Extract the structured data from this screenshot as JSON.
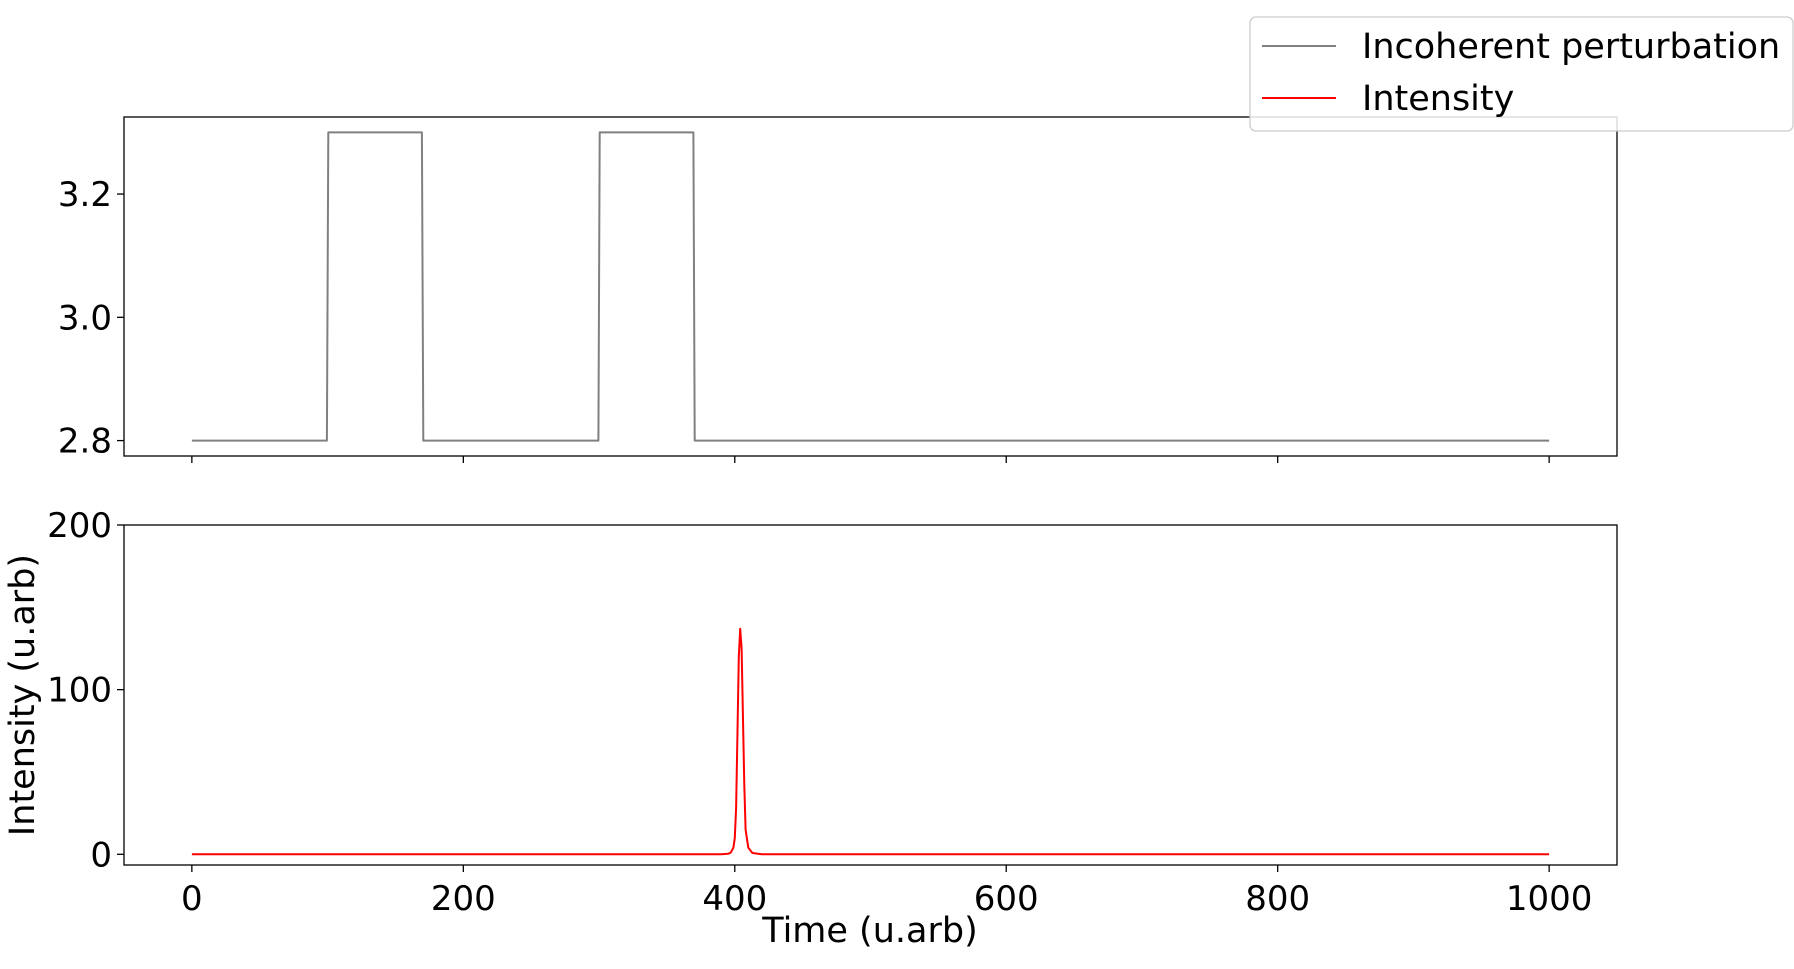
{
  "chart_data": [
    {
      "type": "line",
      "panel": "top",
      "title": "",
      "xlabel": "",
      "ylabel": "",
      "xlim": [
        -50,
        1050
      ],
      "ylim": [
        2.775,
        3.325
      ],
      "yticks": [
        2.8,
        3.0,
        3.2
      ],
      "ytick_labels": [
        "2.8",
        "3.0",
        "3.2"
      ],
      "xticks": [
        0,
        200,
        400,
        600,
        800,
        1000
      ],
      "xtick_labels_visible": false,
      "grid": false,
      "series": [
        {
          "name": "Incoherent perturbation",
          "color": "#808080",
          "x": [
            0,
            99.5,
            100.5,
            169.5,
            170.5,
            299.5,
            300.5,
            369.5,
            370.5,
            1000
          ],
          "y": [
            2.8,
            2.8,
            3.3,
            3.3,
            2.8,
            2.8,
            3.3,
            3.3,
            2.8,
            2.8
          ]
        }
      ]
    },
    {
      "type": "line",
      "panel": "bottom",
      "title": "",
      "xlabel": "Time (u.arb)",
      "ylabel": "Intensity (u.arb)",
      "xlim": [
        -50,
        1050
      ],
      "ylim": [
        -6.5,
        200
      ],
      "yticks": [
        0,
        100,
        200
      ],
      "ytick_labels": [
        "0",
        "100",
        "200"
      ],
      "xticks": [
        0,
        200,
        400,
        600,
        800,
        1000
      ],
      "xtick_labels": [
        "0",
        "200",
        "400",
        "600",
        "800",
        "1000"
      ],
      "grid": false,
      "series": [
        {
          "name": "Intensity",
          "color": "#ff0000",
          "x": [
            0,
            390,
            395,
            397,
            399,
            400,
            401,
            402,
            403,
            404,
            405,
            406,
            407,
            408,
            410,
            413,
            420,
            1000
          ],
          "y": [
            0,
            0,
            0.3,
            1,
            4,
            10,
            28,
            75,
            120,
            137,
            125,
            85,
            42,
            15,
            4,
            0.8,
            0,
            0
          ]
        }
      ]
    }
  ],
  "legend": {
    "placement": "top-right",
    "entries": [
      {
        "label": "Incoherent perturbation",
        "color": "#808080"
      },
      {
        "label": "Intensity",
        "color": "#ff0000"
      }
    ]
  }
}
